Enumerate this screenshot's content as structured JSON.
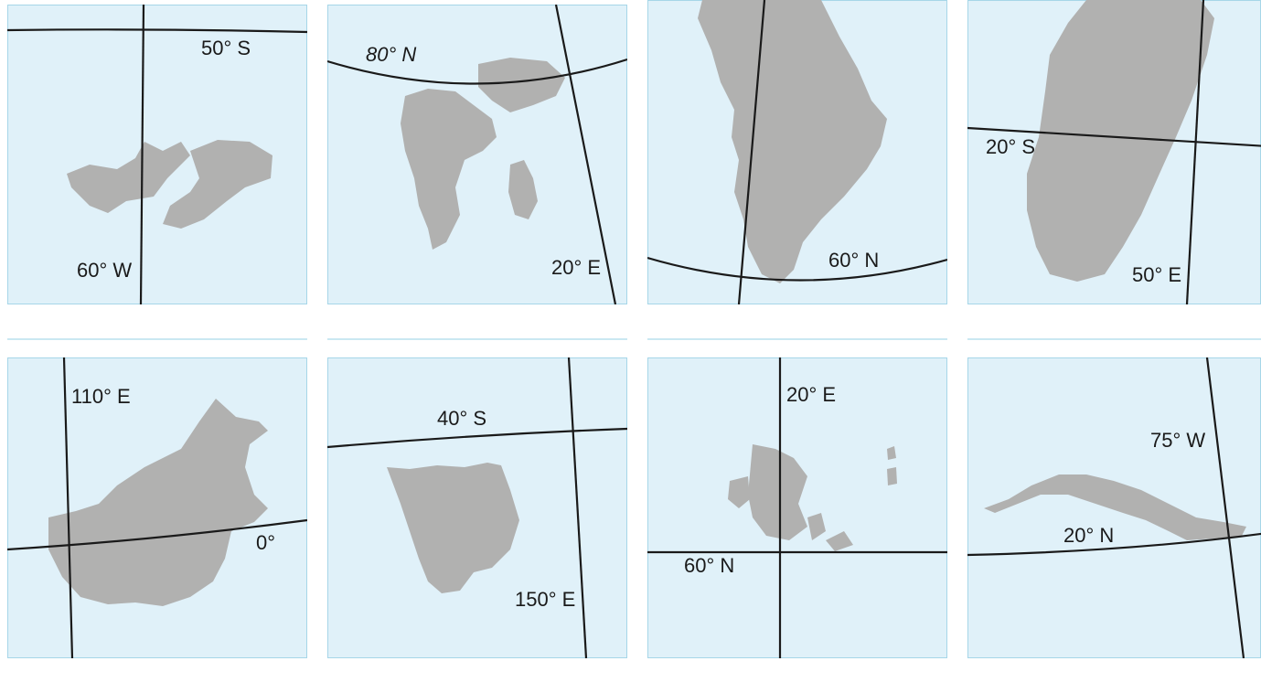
{
  "panels": [
    {
      "labels": [
        "50° S",
        "60° W"
      ]
    },
    {
      "labels": [
        "80° N",
        "20° E"
      ]
    },
    {
      "labels": [
        "60° N"
      ]
    },
    {
      "labels": [
        "20° S",
        "50° E"
      ]
    },
    {
      "labels": [
        "110° E",
        "0°"
      ]
    },
    {
      "labels": [
        "40° S",
        "150° E"
      ]
    },
    {
      "labels": [
        "20° E",
        "60° N"
      ]
    },
    {
      "labels": [
        "75° W",
        "20° N"
      ]
    }
  ]
}
